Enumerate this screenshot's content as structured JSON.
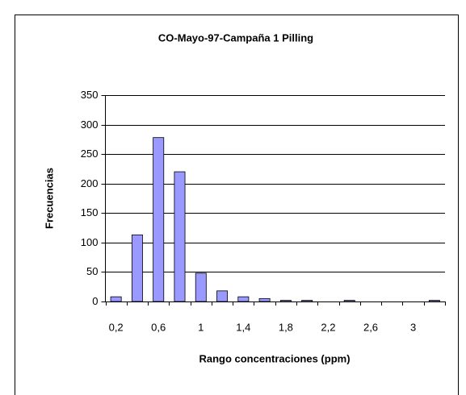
{
  "chart_data": {
    "type": "bar",
    "title": "CO-Mayo-97-Campaña 1 Pilling",
    "x_label": "Rango concentraciones (ppm)",
    "y_label": "Frecuencias",
    "categories": [
      "0,2",
      null,
      "0,6",
      null,
      "1",
      null,
      "1,4",
      null,
      "1,8",
      null,
      "2,2",
      null,
      "2,6",
      null,
      "3",
      null
    ],
    "values": [
      8,
      113,
      278,
      220,
      48,
      18,
      8,
      5,
      2,
      2,
      0,
      2,
      0,
      0,
      0,
      2
    ],
    "color": "#9999ff",
    "ylim": [
      0,
      350
    ],
    "yticks": [
      0,
      50,
      100,
      150,
      200,
      250,
      300,
      350
    ],
    "grid": true
  }
}
